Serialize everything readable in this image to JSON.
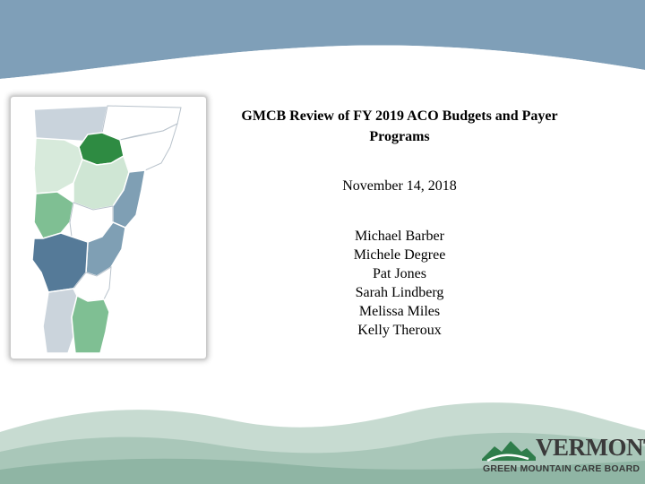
{
  "slide": {
    "title": "GMCB Review of FY 2019 ACO Budgets and Payer Programs",
    "date": "November 14, 2018",
    "presenters": [
      "Michael Barber",
      "Michele Degree",
      "Pat Jones",
      "Sarah Lindberg",
      "Melissa Miles",
      "Kelly Theroux"
    ]
  },
  "logo": {
    "state": "VERMONT",
    "board": "GREEN MOUNTAIN CARE BOARD"
  },
  "colors": {
    "header_wave": "#7f9fb8",
    "footer_wave": "#a9c7b9",
    "logo_green": "#2f7d4b"
  }
}
